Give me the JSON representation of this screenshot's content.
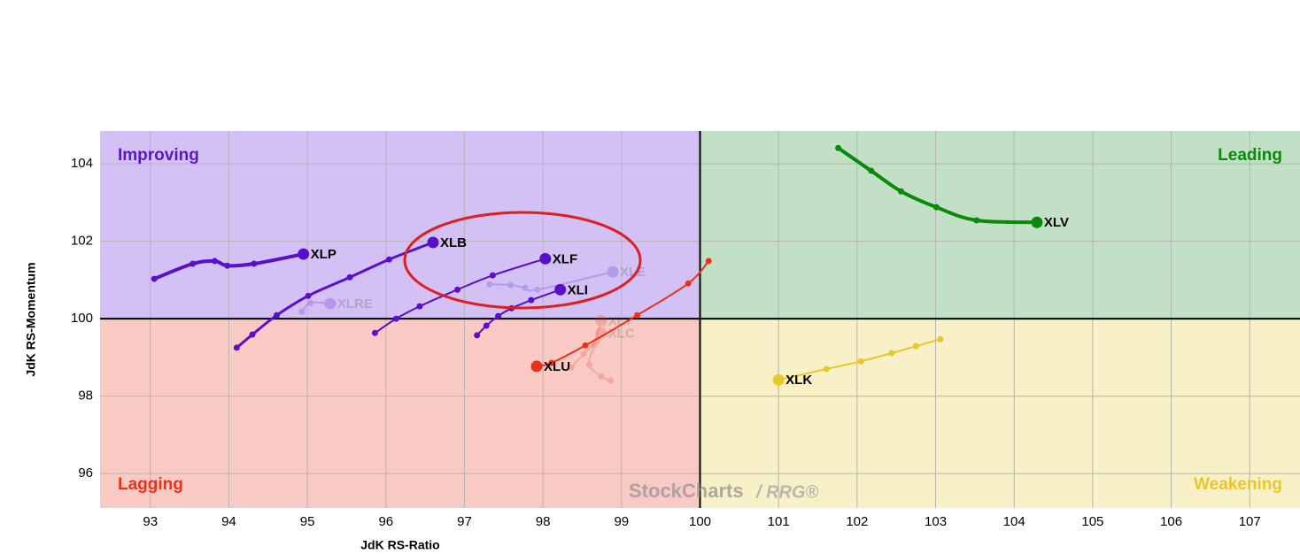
{
  "chart_data": {
    "type": "rrg",
    "x_label": "JdK RS-Ratio",
    "y_label": "JdK RS-Momentum",
    "xlim": [
      92.36,
      107.64
    ],
    "ylim": [
      95.11,
      104.85
    ],
    "xticks": [
      93,
      94,
      95,
      96,
      97,
      98,
      99,
      100,
      101,
      102,
      103,
      104,
      105,
      106,
      107
    ],
    "yticks": [
      96,
      98,
      100,
      102,
      104
    ],
    "center": [
      100,
      100
    ],
    "grid": true,
    "quadrants": [
      {
        "label": "Improving",
        "color": "#5a17c8",
        "fill": "#d3c0f4",
        "corner": "top-left"
      },
      {
        "label": "Leading",
        "color": "#0a8a0a",
        "fill": "#c2e0c6",
        "corner": "top-right"
      },
      {
        "label": "Lagging",
        "color": "#e8321e",
        "fill": "#f9c9c4",
        "corner": "bottom-left"
      },
      {
        "label": "Weakening",
        "color": "#e6c829",
        "fill": "#f8f0c6",
        "corner": "bottom-right"
      }
    ],
    "watermark": "StockCharts",
    "watermark_suffix": "/ RRG®",
    "series": [
      {
        "name": "XLP",
        "color": "#5a0fc8",
        "line_width": 4,
        "faded": false,
        "x": [
          93.05,
          93.54,
          93.82,
          93.98,
          94.32,
          94.95
        ],
        "y": [
          101.03,
          101.42,
          101.49,
          101.37,
          101.42,
          101.67
        ]
      },
      {
        "name": "XLB",
        "color": "#5a0fc8",
        "line_width": 3,
        "faded": false,
        "x": [
          94.1,
          94.3,
          94.61,
          95.01,
          95.54,
          96.04,
          96.6
        ],
        "y": [
          99.25,
          99.59,
          100.09,
          100.59,
          101.07,
          101.53,
          101.97
        ]
      },
      {
        "name": "XLF",
        "color": "#5a0fc8",
        "line_width": 2,
        "faded": false,
        "x": [
          95.86,
          96.13,
          96.43,
          96.91,
          97.36,
          98.03
        ],
        "y": [
          99.63,
          100.0,
          100.32,
          100.75,
          101.12,
          101.55
        ]
      },
      {
        "name": "XLI",
        "color": "#5a0fc8",
        "line_width": 2,
        "faded": false,
        "x": [
          97.16,
          97.28,
          97.43,
          97.6,
          97.85,
          98.22
        ],
        "y": [
          99.57,
          99.82,
          100.07,
          100.27,
          100.48,
          100.75
        ]
      },
      {
        "name": "XLU",
        "color": "#e8321e",
        "line_width": 2,
        "faded": false,
        "x": [
          100.11,
          99.85,
          99.2,
          98.54,
          98.11,
          97.92
        ],
        "y": [
          101.49,
          100.91,
          100.09,
          99.31,
          98.86,
          98.77
        ]
      },
      {
        "name": "XLV",
        "color": "#0a8a0a",
        "line_width": 4,
        "faded": false,
        "x": [
          101.76,
          102.18,
          102.56,
          103.01,
          103.52,
          104.29
        ],
        "y": [
          104.41,
          103.82,
          103.29,
          102.88,
          102.54,
          102.49
        ]
      },
      {
        "name": "XLK",
        "color": "#e6c829",
        "line_width": 2,
        "faded": false,
        "x": [
          103.06,
          102.75,
          102.44,
          102.05,
          101.61,
          101.0
        ],
        "y": [
          99.47,
          99.29,
          99.11,
          98.9,
          98.7,
          98.42
        ]
      },
      {
        "name": "XLRE",
        "color": "#5a0fc8",
        "line_width": 2,
        "faded": true,
        "x": [
          94.93,
          95.04,
          95.29
        ],
        "y": [
          100.18,
          100.41,
          100.39
        ]
      },
      {
        "name": "XLE",
        "color": "#5a0fc8",
        "line_width": 2,
        "faded": true,
        "x": [
          97.32,
          97.59,
          97.77,
          97.93,
          98.89
        ],
        "y": [
          100.89,
          100.87,
          100.8,
          100.75,
          101.21
        ]
      },
      {
        "name": "XLY",
        "color": "#e8321e",
        "line_width": 2,
        "faded": true,
        "x": [
          98.86,
          98.74,
          98.59,
          98.65,
          98.74
        ],
        "y": [
          98.4,
          98.51,
          98.81,
          99.31,
          99.95
        ]
      },
      {
        "name": "XLC",
        "color": "#e8321e",
        "line_width": 2,
        "faded": true,
        "x": [
          98.36,
          98.52,
          98.69,
          98.74
        ],
        "y": [
          98.74,
          99.09,
          99.43,
          99.63
        ]
      }
    ]
  }
}
